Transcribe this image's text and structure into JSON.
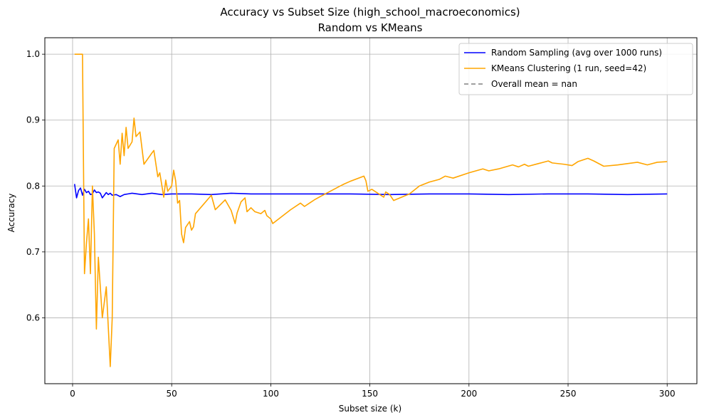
{
  "chart_data": {
    "type": "line",
    "title": "Accuracy vs Subset Size (high_school_macroeconomics)",
    "subtitle": "Random vs KMeans",
    "xlabel": "Subset size (k)",
    "ylabel": "Accuracy",
    "xlim": [
      -14,
      315
    ],
    "ylim": [
      0.5,
      1.025
    ],
    "xticks": [
      0,
      50,
      100,
      150,
      200,
      250,
      300
    ],
    "yticks": [
      0.6,
      0.7,
      0.8,
      0.9,
      1.0
    ],
    "ytick_labels": [
      "0.6",
      "0.7",
      "0.8",
      "0.9",
      "1.0"
    ],
    "grid": true,
    "legend_position": "top-right",
    "series": [
      {
        "name": "Random Sampling (avg over 1000 runs)",
        "color": "#0000ff",
        "style": "solid",
        "points": [
          [
            1,
            0.803
          ],
          [
            2,
            0.782
          ],
          [
            3,
            0.793
          ],
          [
            4,
            0.797
          ],
          [
            5,
            0.786
          ],
          [
            6,
            0.795
          ],
          [
            7,
            0.79
          ],
          [
            8,
            0.792
          ],
          [
            9,
            0.787
          ],
          [
            10,
            0.788
          ],
          [
            11,
            0.794
          ],
          [
            12,
            0.79
          ],
          [
            13,
            0.791
          ],
          [
            14,
            0.789
          ],
          [
            15,
            0.782
          ],
          [
            16,
            0.786
          ],
          [
            17,
            0.79
          ],
          [
            18,
            0.787
          ],
          [
            19,
            0.789
          ],
          [
            20,
            0.786
          ],
          [
            22,
            0.787
          ],
          [
            24,
            0.784
          ],
          [
            26,
            0.787
          ],
          [
            28,
            0.788
          ],
          [
            30,
            0.789
          ],
          [
            35,
            0.787
          ],
          [
            40,
            0.789
          ],
          [
            45,
            0.787
          ],
          [
            50,
            0.788
          ],
          [
            60,
            0.788
          ],
          [
            70,
            0.787
          ],
          [
            80,
            0.789
          ],
          [
            90,
            0.788
          ],
          [
            100,
            0.788
          ],
          [
            120,
            0.788
          ],
          [
            140,
            0.788
          ],
          [
            160,
            0.787
          ],
          [
            180,
            0.788
          ],
          [
            200,
            0.788
          ],
          [
            220,
            0.787
          ],
          [
            240,
            0.788
          ],
          [
            260,
            0.788
          ],
          [
            280,
            0.787
          ],
          [
            300,
            0.788
          ]
        ]
      },
      {
        "name": "KMeans Clustering (1 run, seed=42)",
        "color": "#ffa500",
        "style": "solid",
        "points": [
          [
            1,
            1.0
          ],
          [
            5,
            1.0
          ],
          [
            6,
            0.667
          ],
          [
            7,
            0.714
          ],
          [
            8,
            0.75
          ],
          [
            9,
            0.667
          ],
          [
            10,
            0.8
          ],
          [
            11,
            0.727
          ],
          [
            12,
            0.583
          ],
          [
            13,
            0.692
          ],
          [
            15,
            0.6
          ],
          [
            17,
            0.647
          ],
          [
            19,
            0.526
          ],
          [
            20,
            0.6
          ],
          [
            21,
            0.857
          ],
          [
            23,
            0.87
          ],
          [
            24,
            0.833
          ],
          [
            25,
            0.88
          ],
          [
            26,
            0.846
          ],
          [
            27,
            0.889
          ],
          [
            28,
            0.857
          ],
          [
            30,
            0.867
          ],
          [
            31,
            0.903
          ],
          [
            32,
            0.875
          ],
          [
            34,
            0.882
          ],
          [
            36,
            0.833
          ],
          [
            40,
            0.85
          ],
          [
            41,
            0.854
          ],
          [
            43,
            0.814
          ],
          [
            44,
            0.82
          ],
          [
            46,
            0.783
          ],
          [
            47,
            0.809
          ],
          [
            48,
            0.792
          ],
          [
            49,
            0.796
          ],
          [
            50,
            0.8
          ],
          [
            51,
            0.824
          ],
          [
            52,
            0.808
          ],
          [
            53,
            0.774
          ],
          [
            54,
            0.778
          ],
          [
            55,
            0.727
          ],
          [
            56,
            0.714
          ],
          [
            57,
            0.737
          ],
          [
            59,
            0.746
          ],
          [
            60,
            0.733
          ],
          [
            61,
            0.738
          ],
          [
            62,
            0.758
          ],
          [
            70,
            0.786
          ],
          [
            72,
            0.764
          ],
          [
            75,
            0.773
          ],
          [
            77,
            0.779
          ],
          [
            80,
            0.763
          ],
          [
            81,
            0.753
          ],
          [
            82,
            0.743
          ],
          [
            83,
            0.759
          ],
          [
            85,
            0.776
          ],
          [
            87,
            0.782
          ],
          [
            88,
            0.761
          ],
          [
            90,
            0.767
          ],
          [
            92,
            0.761
          ],
          [
            95,
            0.758
          ],
          [
            97,
            0.763
          ],
          [
            98,
            0.755
          ],
          [
            100,
            0.75
          ],
          [
            101,
            0.743
          ],
          [
            110,
            0.764
          ],
          [
            115,
            0.774
          ],
          [
            117,
            0.769
          ],
          [
            120,
            0.775
          ],
          [
            122,
            0.779
          ],
          [
            125,
            0.784
          ],
          [
            130,
            0.792
          ],
          [
            135,
            0.8
          ],
          [
            137,
            0.803
          ],
          [
            140,
            0.807
          ],
          [
            147,
            0.815
          ],
          [
            148,
            0.808
          ],
          [
            149,
            0.792
          ],
          [
            151,
            0.795
          ],
          [
            155,
            0.787
          ],
          [
            157,
            0.783
          ],
          [
            158,
            0.791
          ],
          [
            160,
            0.787
          ],
          [
            162,
            0.778
          ],
          [
            170,
            0.788
          ],
          [
            175,
            0.8
          ],
          [
            180,
            0.806
          ],
          [
            185,
            0.81
          ],
          [
            188,
            0.815
          ],
          [
            192,
            0.812
          ],
          [
            200,
            0.82
          ],
          [
            207,
            0.826
          ],
          [
            210,
            0.823
          ],
          [
            215,
            0.826
          ],
          [
            222,
            0.832
          ],
          [
            225,
            0.829
          ],
          [
            228,
            0.833
          ],
          [
            230,
            0.83
          ],
          [
            235,
            0.834
          ],
          [
            240,
            0.838
          ],
          [
            242,
            0.835
          ],
          [
            248,
            0.833
          ],
          [
            252,
            0.831
          ],
          [
            255,
            0.837
          ],
          [
            260,
            0.842
          ],
          [
            263,
            0.838
          ],
          [
            268,
            0.83
          ],
          [
            275,
            0.832
          ],
          [
            280,
            0.834
          ],
          [
            285,
            0.836
          ],
          [
            290,
            0.832
          ],
          [
            295,
            0.836
          ],
          [
            300,
            0.837
          ]
        ]
      },
      {
        "name": "Overall mean = nan",
        "color": "#808080",
        "style": "dashed",
        "points": []
      }
    ]
  }
}
